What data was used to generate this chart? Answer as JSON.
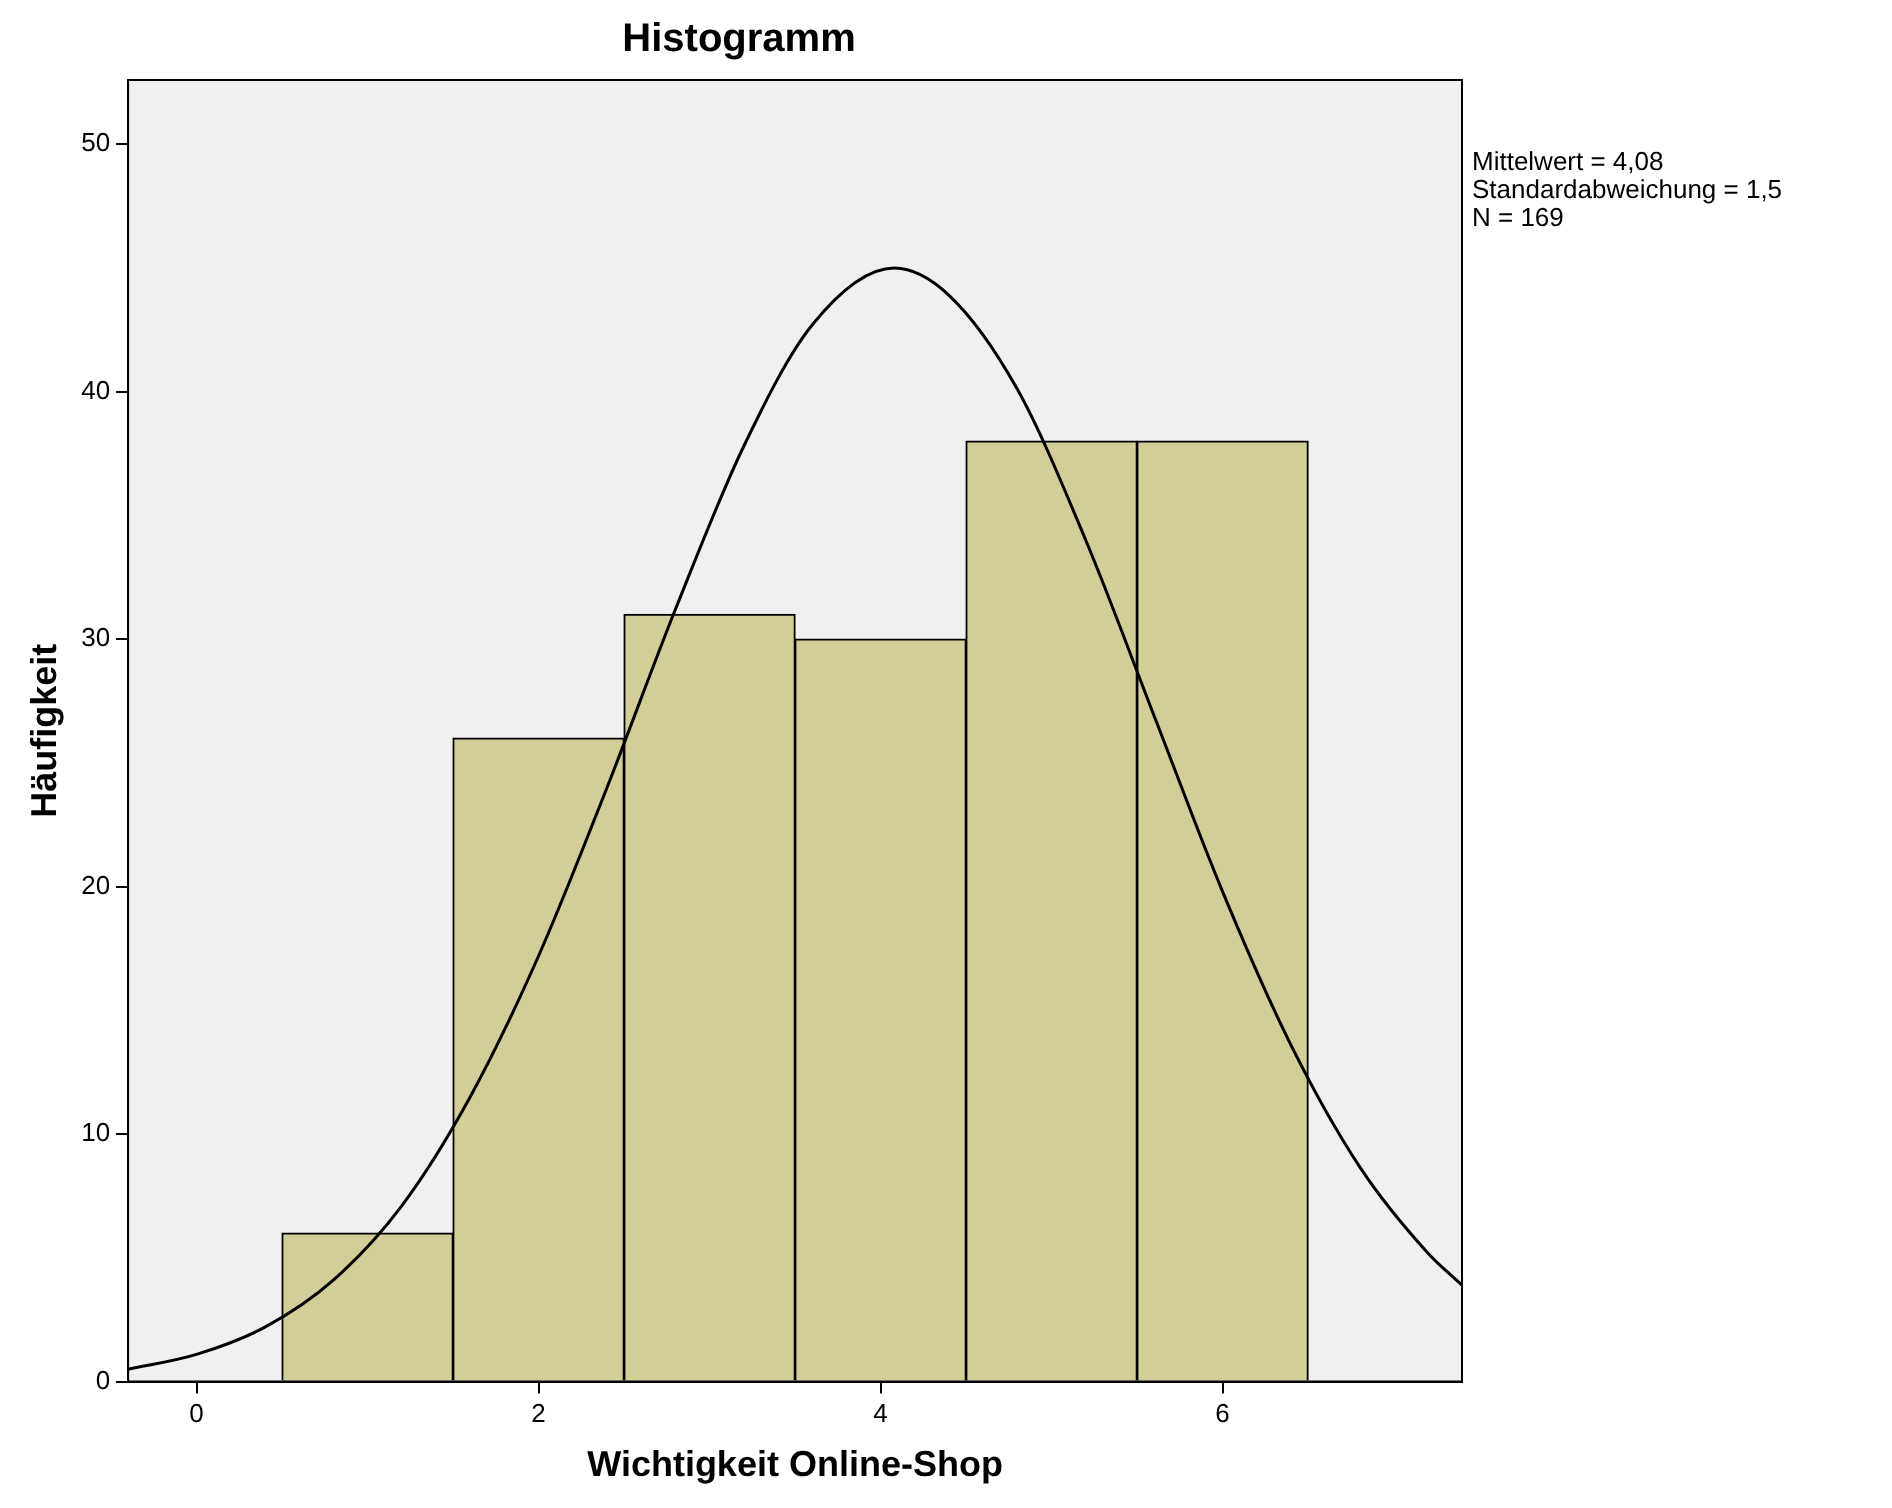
{
  "chart_data": {
    "type": "histogram",
    "title": "Histogramm",
    "xlabel": "Wichtigkeit Online-Shop",
    "ylabel": "Häufigkeit",
    "bins": [
      0.5,
      1.5,
      2.5,
      3.5,
      4.5,
      5.5,
      6.5
    ],
    "values": [
      6,
      26,
      31,
      30,
      38,
      38
    ],
    "color": "#d3ce97",
    "series": [
      {
        "type": "line",
        "color": "#000000",
        "x": [
          -0.4,
          0,
          0.4,
          0.8,
          1.2,
          1.6,
          2.0,
          2.4,
          2.8,
          3.2,
          3.6,
          4.08,
          4.4,
          4.8,
          5.2,
          5.6,
          6.0,
          6.4,
          6.8,
          7.2,
          7.4
        ],
        "values": [
          0.5,
          1.1,
          2.2,
          4.1,
          7.1,
          11.5,
          17.2,
          24.0,
          31.2,
          37.8,
          42.7,
          45.0,
          43.9,
          40.1,
          34.0,
          26.9,
          19.8,
          13.6,
          8.7,
          5.2,
          3.9
        ]
      }
    ],
    "xlim": [
      -0.4,
      7.4
    ],
    "xticks": [
      0,
      2,
      4,
      6
    ],
    "ylim": [
      0,
      52.6
    ],
    "yticks": [
      0,
      10,
      20,
      30,
      40,
      50
    ],
    "grid": false,
    "legend": false,
    "annotations": [
      "Mittelwert = 4,08",
      "Standardabweichung = 1,5",
      "N = 169"
    ]
  }
}
